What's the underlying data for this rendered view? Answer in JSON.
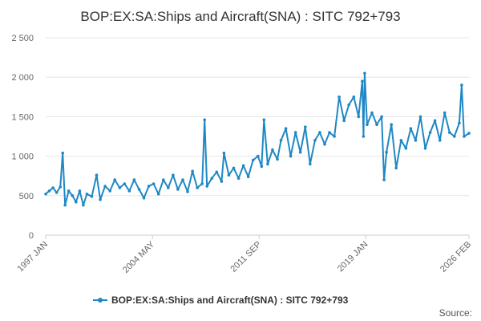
{
  "chart_data": {
    "type": "line",
    "title": "BOP:EX:SA:Ships and Aircraft(SNA) : SITC 792+793",
    "xlabel": "",
    "ylabel": "",
    "ylim": [
      0,
      2500
    ],
    "y_ticks": [
      0,
      500,
      1000,
      1500,
      2000,
      2500
    ],
    "y_tick_labels": [
      "0",
      "500",
      "1 000",
      "1 500",
      "2 000",
      "2 500"
    ],
    "x_range": [
      "1997 JAN",
      "2026 FEB"
    ],
    "x_tick_labels": [
      "1997 JAN",
      "2004 MAY",
      "2011 SEP",
      "2019 JAN",
      "2026 FEB"
    ],
    "grid": "horizontal",
    "legend_position": "bottom",
    "series": [
      {
        "name": "BOP:EX:SA:Ships and Aircraft(SNA) : SITC 792+793",
        "color": "#1f88c4",
        "points": [
          [
            "1997-01",
            520
          ],
          [
            "1997-04",
            560
          ],
          [
            "1997-07",
            600
          ],
          [
            "1997-10",
            540
          ],
          [
            "1998-01",
            610
          ],
          [
            "1998-03",
            1040
          ],
          [
            "1998-05",
            380
          ],
          [
            "1998-08",
            560
          ],
          [
            "1998-11",
            500
          ],
          [
            "1999-02",
            420
          ],
          [
            "1999-05",
            560
          ],
          [
            "1999-08",
            380
          ],
          [
            "1999-11",
            520
          ],
          [
            "2000-03",
            490
          ],
          [
            "2000-07",
            760
          ],
          [
            "2000-10",
            450
          ],
          [
            "2001-02",
            620
          ],
          [
            "2001-06",
            560
          ],
          [
            "2001-10",
            700
          ],
          [
            "2002-02",
            600
          ],
          [
            "2002-06",
            650
          ],
          [
            "2002-10",
            560
          ],
          [
            "2003-02",
            700
          ],
          [
            "2003-06",
            580
          ],
          [
            "2003-10",
            470
          ],
          [
            "2004-02",
            620
          ],
          [
            "2004-06",
            650
          ],
          [
            "2004-10",
            520
          ],
          [
            "2005-02",
            700
          ],
          [
            "2005-06",
            600
          ],
          [
            "2005-10",
            760
          ],
          [
            "2006-02",
            580
          ],
          [
            "2006-06",
            700
          ],
          [
            "2006-10",
            550
          ],
          [
            "2007-02",
            810
          ],
          [
            "2007-06",
            600
          ],
          [
            "2007-10",
            650
          ],
          [
            "2007-12",
            1460
          ],
          [
            "2008-02",
            620
          ],
          [
            "2008-06",
            720
          ],
          [
            "2008-10",
            800
          ],
          [
            "2009-02",
            680
          ],
          [
            "2009-04",
            1040
          ],
          [
            "2009-08",
            760
          ],
          [
            "2009-12",
            850
          ],
          [
            "2010-04",
            720
          ],
          [
            "2010-08",
            880
          ],
          [
            "2010-12",
            740
          ],
          [
            "2011-04",
            950
          ],
          [
            "2011-08",
            1000
          ],
          [
            "2011-11",
            870
          ],
          [
            "2012-01",
            1460
          ],
          [
            "2012-04",
            900
          ],
          [
            "2012-08",
            1080
          ],
          [
            "2012-12",
            960
          ],
          [
            "2013-03",
            1200
          ],
          [
            "2013-07",
            1350
          ],
          [
            "2013-11",
            1000
          ],
          [
            "2014-03",
            1300
          ],
          [
            "2014-07",
            1050
          ],
          [
            "2014-11",
            1370
          ],
          [
            "2015-03",
            900
          ],
          [
            "2015-07",
            1200
          ],
          [
            "2015-11",
            1300
          ],
          [
            "2016-03",
            1150
          ],
          [
            "2016-07",
            1300
          ],
          [
            "2016-11",
            1250
          ],
          [
            "2017-03",
            1750
          ],
          [
            "2017-07",
            1450
          ],
          [
            "2017-11",
            1650
          ],
          [
            "2018-03",
            1750
          ],
          [
            "2018-07",
            1500
          ],
          [
            "2018-10",
            1950
          ],
          [
            "2018-11",
            1250
          ],
          [
            "2018-12",
            2050
          ],
          [
            "2019-02",
            1400
          ],
          [
            "2019-06",
            1550
          ],
          [
            "2019-10",
            1400
          ],
          [
            "2020-02",
            1500
          ],
          [
            "2020-04",
            700
          ],
          [
            "2020-06",
            1050
          ],
          [
            "2020-10",
            1400
          ],
          [
            "2021-02",
            850
          ],
          [
            "2021-06",
            1200
          ],
          [
            "2021-10",
            1100
          ],
          [
            "2022-02",
            1350
          ],
          [
            "2022-06",
            1200
          ],
          [
            "2022-10",
            1500
          ],
          [
            "2023-02",
            1100
          ],
          [
            "2023-06",
            1300
          ],
          [
            "2023-10",
            1450
          ],
          [
            "2024-02",
            1200
          ],
          [
            "2024-06",
            1550
          ],
          [
            "2024-10",
            1300
          ],
          [
            "2025-02",
            1250
          ],
          [
            "2025-06",
            1420
          ],
          [
            "2025-08",
            1900
          ],
          [
            "2025-10",
            1250
          ],
          [
            "2026-02",
            1290
          ]
        ]
      }
    ]
  },
  "source_label": "Source:"
}
